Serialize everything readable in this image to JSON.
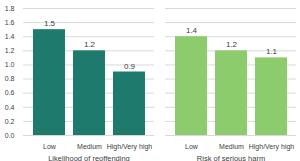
{
  "chart_data": {
    "type": "bar",
    "categories": [
      "Low",
      "Medium",
      "High/Very high"
    ],
    "series": [
      {
        "name": "Likelihood of reoffending",
        "color": "#1f7a6e",
        "values": [
          1.5,
          1.2,
          0.9
        ]
      },
      {
        "name": "Risk of serious harm",
        "color": "#8ccc6c",
        "values": [
          1.4,
          1.2,
          1.1
        ]
      }
    ],
    "ylim": [
      0,
      1.8
    ],
    "yticks": [
      {
        "value": 0,
        "label": "0.0"
      },
      0.2,
      0.4,
      0.6,
      0.8,
      {
        "value": 1,
        "label": "1.0"
      },
      1.2,
      1.4,
      1.6,
      1.8
    ],
    "grid": true,
    "data_labels": true
  }
}
